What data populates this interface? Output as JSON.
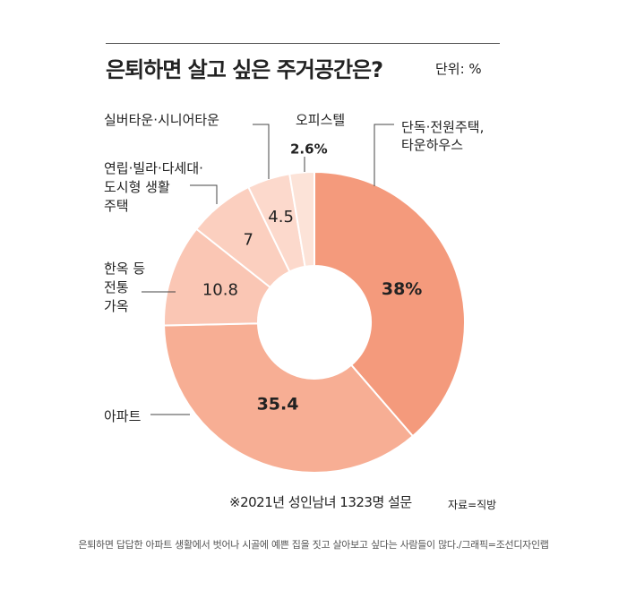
{
  "header": {
    "title": "은퇴하면 살고 싶은 주거공간은?",
    "unit": "단위: %"
  },
  "chart_data": {
    "type": "pie",
    "subtype": "donut",
    "title": "은퇴하면 살고 싶은 주거공간은?",
    "unit": "단위: %",
    "start": "top, clockwise",
    "slices": [
      {
        "label_lines": [
          "단독·전원주택,",
          "타운하우스"
        ],
        "value": 38,
        "value_label": "38%",
        "color": "#F49A7C"
      },
      {
        "label_lines": [
          "아파트"
        ],
        "value": 35.4,
        "value_label": "35.4",
        "color": "#F7AE94"
      },
      {
        "label_lines": [
          "한옥 등",
          "전통",
          "가옥"
        ],
        "value": 10.8,
        "value_label": "10.8",
        "color": "#FAC6B4"
      },
      {
        "label_lines": [
          "연립·빌라·다세대·",
          "도시형 생활",
          "주택"
        ],
        "value": 7,
        "value_label": "7",
        "color": "#FBCFBF"
      },
      {
        "label_lines": [
          "실버타운·시니어타운"
        ],
        "value": 4.5,
        "value_label": "4.5",
        "color": "#FCD9CC"
      },
      {
        "label_lines": [
          "오피스텔"
        ],
        "value": 2.6,
        "value_label": "2.6%",
        "color": "#FCE3D8"
      }
    ]
  },
  "footnote": "※2021년 성인남녀 1323명 설문",
  "source": "자료=직방",
  "caption": "은퇴하면 답답한 아파트 생활에서 벗어나 시골에 예쁜 집을 짓고 살아보고 싶다는 사람들이 많다./그래픽=조선디자인랩"
}
